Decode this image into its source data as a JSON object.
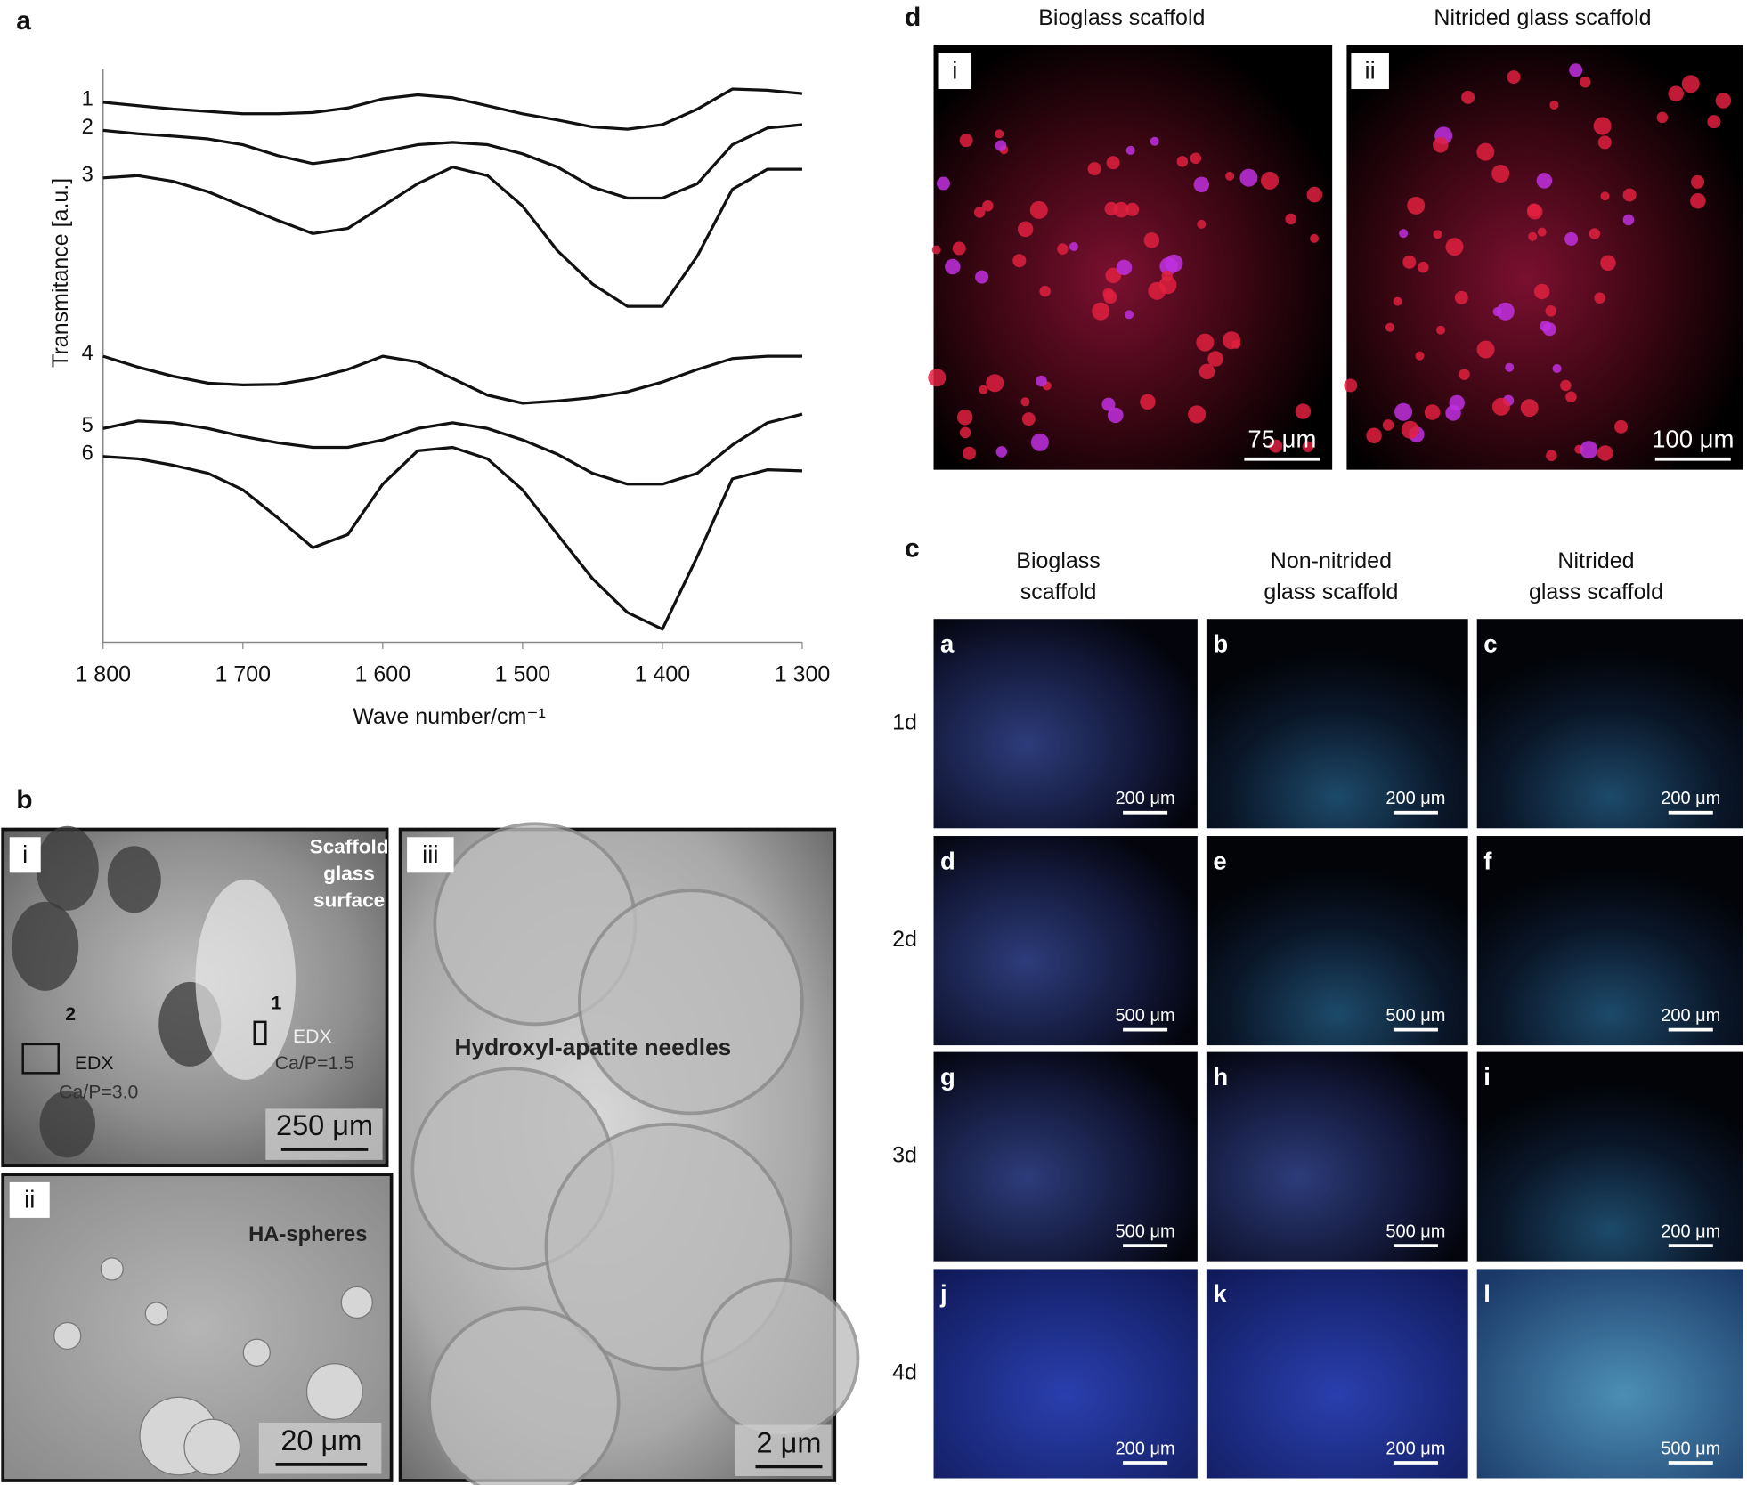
{
  "chart_data": {
    "type": "line",
    "panel_label": "a",
    "xlabel": "Wave number/cm⁻¹",
    "ylabel": "Transmitance [a.u.]",
    "x": [
      1800,
      1775,
      1750,
      1725,
      1700,
      1675,
      1650,
      1625,
      1600,
      1575,
      1550,
      1525,
      1500,
      1475,
      1450,
      1425,
      1400,
      1375,
      1350,
      1325,
      1300
    ],
    "xlim": [
      1800,
      1300
    ],
    "ylim": [
      0,
      100
    ],
    "xticks": [
      {
        "value": 1800,
        "label": "1 800"
      },
      {
        "value": 1700,
        "label": "1 700"
      },
      {
        "value": 1600,
        "label": "1 600"
      },
      {
        "value": 1500,
        "label": "1 500"
      },
      {
        "value": 1400,
        "label": "1 400"
      },
      {
        "value": 1300,
        "label": "1 300"
      }
    ],
    "series": [
      {
        "name": "1",
        "color": "#111111",
        "values": [
          94.2,
          93.6,
          93.0,
          92.6,
          92.2,
          92.2,
          92.4,
          93.2,
          94.8,
          95.5,
          95.0,
          93.6,
          92.2,
          91.1,
          89.9,
          89.5,
          90.3,
          93.0,
          96.5,
          96.3,
          95.7
        ]
      },
      {
        "name": "2",
        "color": "#111111",
        "values": [
          89.3,
          88.7,
          88.3,
          87.8,
          86.8,
          84.9,
          83.5,
          84.3,
          85.6,
          86.8,
          87.2,
          86.8,
          85.2,
          82.9,
          79.4,
          77.5,
          77.5,
          80.0,
          86.8,
          89.7,
          90.3
        ]
      },
      {
        "name": "3",
        "color": "#111111",
        "values": [
          81.0,
          81.4,
          80.4,
          78.6,
          76.1,
          73.6,
          71.3,
          72.2,
          76.1,
          80.0,
          82.9,
          81.4,
          76.1,
          68.3,
          62.5,
          58.6,
          58.6,
          67.4,
          79.0,
          82.5,
          82.5
        ]
      },
      {
        "name": "4",
        "color": "#111111",
        "values": [
          49.9,
          48.0,
          46.4,
          45.2,
          44.9,
          45.0,
          46.0,
          47.6,
          49.9,
          48.9,
          46.0,
          43.1,
          41.7,
          42.1,
          42.7,
          43.7,
          45.4,
          47.6,
          49.5,
          49.9,
          49.9
        ]
      },
      {
        "name": "5",
        "color": "#111111",
        "values": [
          37.3,
          38.6,
          38.3,
          37.3,
          35.9,
          34.8,
          34.0,
          34.0,
          35.3,
          37.3,
          38.3,
          37.3,
          35.3,
          32.8,
          29.5,
          27.6,
          27.6,
          29.5,
          34.4,
          38.3,
          39.8
        ]
      },
      {
        "name": "6",
        "color": "#111111",
        "values": [
          32.4,
          32.0,
          30.9,
          29.5,
          26.6,
          21.7,
          16.5,
          18.8,
          27.6,
          33.4,
          34.0,
          32.0,
          26.6,
          18.8,
          11.1,
          5.2,
          2.3,
          15.0,
          28.5,
          30.1,
          29.9
        ]
      }
    ]
  },
  "panels": {
    "b": {
      "label": "b",
      "i": {
        "tag": "i",
        "caption": [
          "Scaffold",
          "glass",
          "surface"
        ],
        "points": [
          {
            "num": "1",
            "edx": "EDX",
            "ratio": "Ca/P=1.5"
          },
          {
            "num": "2",
            "edx": "EDX",
            "ratio": "Ca/P=3.0"
          }
        ],
        "scale": "250 μm"
      },
      "ii": {
        "tag": "ii",
        "caption": "HA-spheres",
        "scale": "20 μm"
      },
      "iii": {
        "tag": "iii",
        "caption": "Hydroxyl-apatite needles",
        "scale": "2 μm"
      }
    },
    "d": {
      "label": "d",
      "images": [
        {
          "title": "Bioglass scaffold",
          "tag": "i",
          "scale": "75 μm"
        },
        {
          "title": "Nitrided glass scaffold",
          "tag": "ii",
          "scale": "100 μm"
        }
      ]
    },
    "c": {
      "label": "c",
      "columns": [
        [
          "Bioglass",
          "scaffold"
        ],
        [
          "Non-nitrided",
          "glass scaffold"
        ],
        [
          "Nitrided",
          "glass scaffold"
        ]
      ],
      "rows": [
        {
          "label": "1d",
          "cells": [
            {
              "letter": "a",
              "scale": "200 μm"
            },
            {
              "letter": "b",
              "scale": "200 μm"
            },
            {
              "letter": "c",
              "scale": "200 μm"
            }
          ]
        },
        {
          "label": "2d",
          "cells": [
            {
              "letter": "d",
              "scale": "500 μm"
            },
            {
              "letter": "e",
              "scale": "500 μm"
            },
            {
              "letter": "f",
              "scale": "200 μm"
            }
          ]
        },
        {
          "label": "3d",
          "cells": [
            {
              "letter": "g",
              "scale": "500 μm"
            },
            {
              "letter": "h",
              "scale": "500 μm"
            },
            {
              "letter": "i",
              "scale": "200 μm"
            }
          ]
        },
        {
          "label": "4d",
          "cells": [
            {
              "letter": "j",
              "scale": "200 μm"
            },
            {
              "letter": "k",
              "scale": "200 μm"
            },
            {
              "letter": "l",
              "scale": "500 μm"
            }
          ]
        }
      ]
    }
  }
}
